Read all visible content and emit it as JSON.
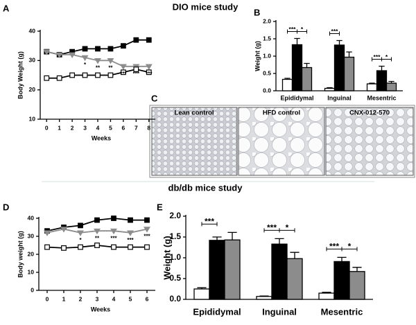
{
  "title": "DIO mice study",
  "subtitle": "db/db mice study",
  "panel_letters": [
    "A",
    "B",
    "C",
    "D",
    "E"
  ],
  "micrographs": {
    "labels": [
      "Lean control",
      "HFD control",
      "CNX-012-570"
    ]
  },
  "chart_data": [
    {
      "type": "line",
      "x": [
        0,
        1,
        2,
        3,
        4,
        5,
        6,
        7,
        8
      ],
      "xlim": [
        -0.5,
        8.5
      ],
      "xticks": [
        0,
        1,
        2,
        3,
        4,
        5,
        6,
        7,
        8
      ],
      "ylim": [
        10,
        40
      ],
      "yticks": [
        10,
        20,
        30,
        40
      ],
      "xlabel": "Weeks",
      "ylabel": "Body Weight (g)",
      "series": [
        {
          "color": "#000000",
          "marker": "square",
          "marker_fill": "#000000",
          "values": [
            33,
            32,
            33,
            34,
            34,
            34,
            35,
            37,
            37
          ]
        },
        {
          "color": "#8c8c8c",
          "marker": "triangle",
          "marker_fill": "#8c8c8c",
          "values": [
            33,
            32,
            32,
            31,
            30,
            30,
            28,
            28,
            28
          ]
        },
        {
          "color": "#000000",
          "marker": "square",
          "marker_fill": "#ffffff",
          "values": [
            24,
            24,
            25,
            25,
            25,
            25,
            26,
            27,
            26
          ]
        }
      ],
      "annotations": [
        {
          "x": 3,
          "text": "*"
        },
        {
          "x": 4,
          "text": "**"
        },
        {
          "x": 5,
          "text": "**"
        },
        {
          "x": 6,
          "text": "***"
        },
        {
          "x": 7,
          "text": "***"
        },
        {
          "x": 8,
          "text": "***"
        }
      ]
    },
    {
      "type": "bar",
      "categories": [
        "Epididymal",
        "Inguinal",
        "Mesentric"
      ],
      "ylim": [
        0,
        2
      ],
      "yticks": [
        {
          "value": 0,
          "label": "0.0"
        },
        0.5,
        {
          "value": 1,
          "label": "1.0"
        },
        1.5,
        {
          "value": 2,
          "label": "2.0"
        }
      ],
      "ylabel": "Weight (g)",
      "series": [
        {
          "color": "#ffffff",
          "values": [
            0.33,
            0.07,
            0.2
          ],
          "errors": [
            0.03,
            0.02,
            0.02
          ]
        },
        {
          "color": "#000000",
          "values": [
            1.33,
            1.32,
            0.58
          ],
          "errors": [
            0.18,
            0.13,
            0.13
          ]
        },
        {
          "color": "#8c8c8c",
          "values": [
            0.67,
            0.97,
            0.22
          ],
          "errors": [
            0.12,
            0.15,
            0.05
          ]
        }
      ],
      "brackets": [
        {
          "category": 0,
          "from": 0,
          "to": 1,
          "text": "***"
        },
        {
          "category": 0,
          "from": 1,
          "to": 2,
          "text": "*"
        },
        {
          "category": 1,
          "from": 0,
          "to": 1,
          "text": "***"
        },
        {
          "category": 2,
          "from": 0,
          "to": 1,
          "text": "***"
        },
        {
          "category": 2,
          "from": 1,
          "to": 2,
          "text": "*"
        }
      ]
    },
    {
      "type": "line",
      "x": [
        0,
        1,
        2,
        3,
        4,
        5,
        6
      ],
      "xlim": [
        -0.5,
        6.5
      ],
      "xticks": [
        0,
        1,
        2,
        3,
        4,
        5,
        6
      ],
      "ylim": [
        0,
        40
      ],
      "yticks": [
        0,
        10,
        20,
        30,
        40
      ],
      "xlabel": "Weeks",
      "ylabel": "Body weight (g)",
      "series": [
        {
          "color": "#000000",
          "marker": "square",
          "marker_fill": "#000000",
          "values": [
            33,
            35,
            36,
            39,
            40,
            39,
            39
          ]
        },
        {
          "color": "#8c8c8c",
          "marker": "triangle",
          "marker_fill": "#8c8c8c",
          "values": [
            32,
            34,
            32,
            33,
            33,
            32,
            34
          ]
        },
        {
          "color": "#000000",
          "marker": "square",
          "marker_fill": "#ffffff",
          "values": [
            24,
            23.5,
            24,
            25,
            24,
            24,
            24
          ]
        }
      ],
      "annotations": [
        {
          "x": 2,
          "text": "*"
        },
        {
          "x": 3,
          "text": "**"
        },
        {
          "x": 4,
          "text": "***"
        },
        {
          "x": 5,
          "text": "***"
        },
        {
          "x": 6,
          "text": "***"
        }
      ]
    },
    {
      "type": "bar",
      "categories": [
        "Epididymal",
        "Inguinal",
        "Mesentric"
      ],
      "ylim": [
        0,
        2
      ],
      "yticks": [
        {
          "value": 0,
          "label": "0.0"
        },
        0.5,
        {
          "value": 1,
          "label": "1.0"
        },
        1.5,
        {
          "value": 2,
          "label": "2.0"
        }
      ],
      "ylabel": "Weight (g)",
      "series": [
        {
          "color": "#ffffff",
          "values": [
            0.25,
            0.07,
            0.15
          ],
          "errors": [
            0.03,
            0.01,
            0.02
          ]
        },
        {
          "color": "#000000",
          "values": [
            1.42,
            1.33,
            0.91
          ],
          "errors": [
            0.08,
            0.13,
            0.1
          ]
        },
        {
          "color": "#8c8c8c",
          "values": [
            1.43,
            0.98,
            0.67
          ],
          "errors": [
            0.18,
            0.15,
            0.1
          ]
        }
      ],
      "brackets": [
        {
          "category": 0,
          "from": 0,
          "to": 1,
          "text": "***"
        },
        {
          "category": 1,
          "from": 0,
          "to": 1,
          "text": "***"
        },
        {
          "category": 1,
          "from": 1,
          "to": 2,
          "text": "*"
        },
        {
          "category": 2,
          "from": 0,
          "to": 1,
          "text": "***"
        },
        {
          "category": 2,
          "from": 1,
          "to": 2,
          "text": "*"
        }
      ]
    }
  ]
}
